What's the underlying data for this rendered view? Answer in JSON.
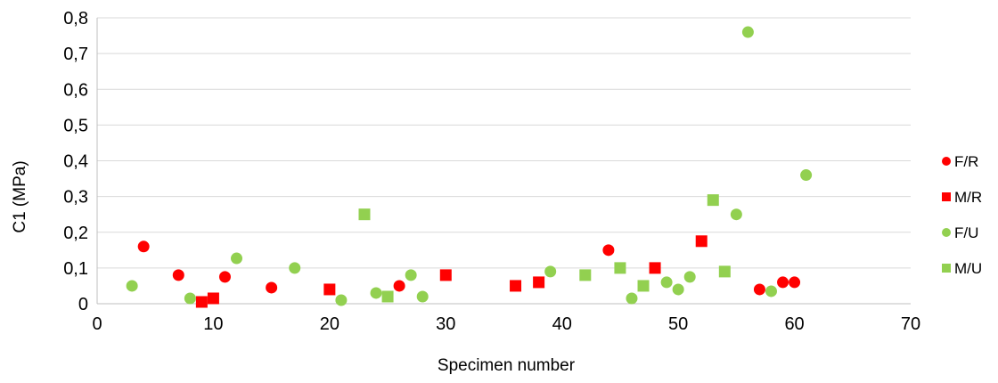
{
  "chart_data": {
    "type": "scatter",
    "xlabel": "Specimen number",
    "ylabel": "C1 (MPa)",
    "xlim": [
      0,
      70
    ],
    "ylim": [
      0,
      0.8
    ],
    "x_ticks": [
      0,
      10,
      20,
      30,
      40,
      50,
      60,
      70
    ],
    "x_tick_labels": [
      "0",
      "10",
      "20",
      "30",
      "40",
      "50",
      "60",
      "70"
    ],
    "y_ticks": [
      0,
      0.1,
      0.2,
      0.3,
      0.4,
      0.5,
      0.6,
      0.7,
      0.8
    ],
    "y_tick_labels": [
      "0",
      "0,1",
      "0,2",
      "0,3",
      "0,4",
      "0,5",
      "0,6",
      "0,7",
      "0,8"
    ],
    "grid": "horizontal",
    "legend_position": "right",
    "series": [
      {
        "name": "F/R",
        "marker": "circle",
        "color": "#ff0000",
        "points": [
          [
            4,
            0.16
          ],
          [
            7,
            0.08
          ],
          [
            11,
            0.075
          ],
          [
            15,
            0.045
          ],
          [
            26,
            0.05
          ],
          [
            44,
            0.15
          ],
          [
            57,
            0.04
          ],
          [
            59,
            0.06
          ],
          [
            60,
            0.06
          ]
        ]
      },
      {
        "name": "M/R",
        "marker": "square",
        "color": "#ff0000",
        "points": [
          [
            9,
            0.005
          ],
          [
            10,
            0.015
          ],
          [
            20,
            0.04
          ],
          [
            30,
            0.08
          ],
          [
            36,
            0.05
          ],
          [
            38,
            0.06
          ],
          [
            48,
            0.1
          ],
          [
            52,
            0.175
          ]
        ]
      },
      {
        "name": "F/U",
        "marker": "circle",
        "color": "#92d050",
        "points": [
          [
            3,
            0.05
          ],
          [
            8,
            0.015
          ],
          [
            12,
            0.127
          ],
          [
            17,
            0.1
          ],
          [
            21,
            0.01
          ],
          [
            24,
            0.03
          ],
          [
            27,
            0.08
          ],
          [
            28,
            0.02
          ],
          [
            39,
            0.09
          ],
          [
            46,
            0.015
          ],
          [
            49,
            0.06
          ],
          [
            50,
            0.04
          ],
          [
            51,
            0.075
          ],
          [
            55,
            0.25
          ],
          [
            56,
            0.76
          ],
          [
            58,
            0.035
          ],
          [
            61,
            0.36
          ]
        ]
      },
      {
        "name": "M/U",
        "marker": "square",
        "color": "#92d050",
        "points": [
          [
            23,
            0.25
          ],
          [
            25,
            0.02
          ],
          [
            42,
            0.08
          ],
          [
            45,
            0.1
          ],
          [
            47,
            0.05
          ],
          [
            53,
            0.29
          ],
          [
            54,
            0.09
          ]
        ]
      }
    ]
  }
}
